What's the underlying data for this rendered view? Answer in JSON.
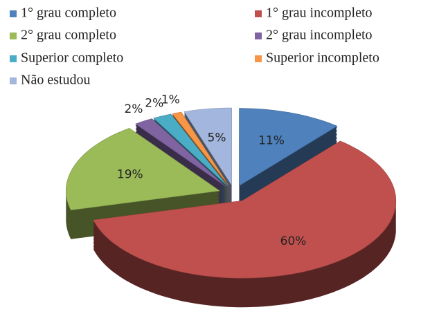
{
  "chart_data": {
    "type": "pie",
    "three_d": true,
    "exploded": true,
    "categories": [
      "1° grau completo",
      "1° grau incompleto",
      "2° grau completo",
      "2° grau incompleto",
      "Superior completo",
      "Superior incompleto",
      "Não estudou"
    ],
    "values": [
      11,
      60,
      19,
      2,
      2,
      1,
      5
    ],
    "value_labels": [
      "11%",
      "60%",
      "19%",
      "2%",
      "2%",
      "1%",
      "5%"
    ],
    "colors": [
      "#4f81bd",
      "#c0504d",
      "#9bbb59",
      "#8064a2",
      "#4bacc6",
      "#f79646",
      "#a3b7de"
    ],
    "legend": "top"
  }
}
